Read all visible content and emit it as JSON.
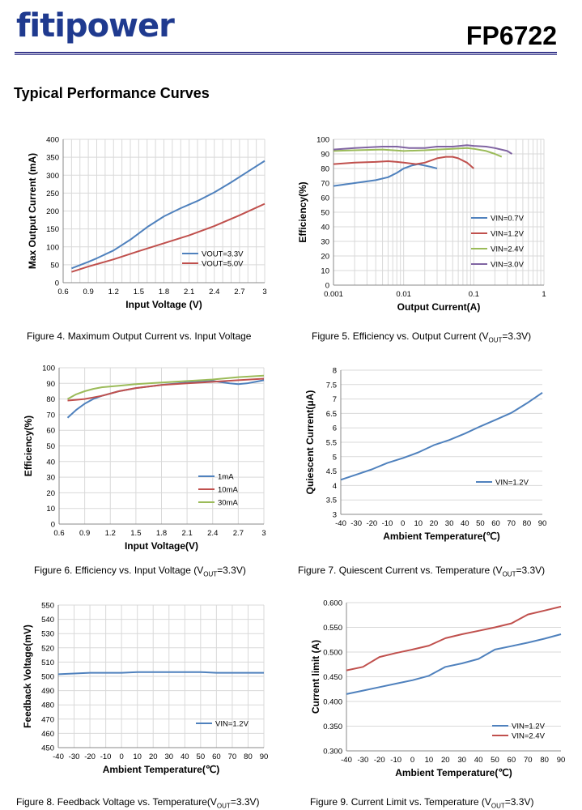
{
  "header": {
    "brand": "fitipower",
    "part_number": "FP6722",
    "section_title": "Typical Performance Curves"
  },
  "captions": [
    {
      "text": "Figure 4. Maximum Output Current vs. Input Voltage",
      "sub": "",
      "after": ""
    },
    {
      "text": "Figure 5. Efficiency vs. Output Current (V",
      "sub": "OUT",
      "after": "=3.3V)"
    },
    {
      "text": "Figure 6. Efficiency vs. Input Voltage (V",
      "sub": "OUT",
      "after": "=3.3V)"
    },
    {
      "text": "Figure 7. Quiescent Current vs. Temperature (V",
      "sub": "OUT",
      "after": "=3.3V)"
    },
    {
      "text": "Figure 8. Feedback Voltage vs. Temperature(V",
      "sub": "OUT",
      "after": "=3.3V)"
    },
    {
      "text": "Figure 9. Current Limit vs. Temperature (V",
      "sub": "OUT",
      "after": "=3.3V)"
    }
  ],
  "colors": {
    "blue": "#4f81bd",
    "red": "#c0504d",
    "green": "#9bbb59",
    "purple": "#8064a2",
    "grid": "#d9d9d9",
    "axis": "#888888"
  },
  "chart_data": [
    {
      "type": "line",
      "xlabel": "Input Voltage (V)",
      "ylabel": "Max Output Current (mA)",
      "xlim": [
        0.6,
        3
      ],
      "ylim": [
        0,
        400
      ],
      "xticks": [
        "0.6",
        "0.9",
        "1.2",
        "1.5",
        "1.8",
        "2.1",
        "2.4",
        "2.7",
        "3"
      ],
      "yticks": [
        "0",
        "50",
        "100",
        "150",
        "200",
        "250",
        "300",
        "350",
        "400"
      ],
      "legend": "bottom-right",
      "series": [
        {
          "name": "VOUT=3.3V",
          "color": "blue",
          "x": [
            0.7,
            0.9,
            1.0,
            1.2,
            1.4,
            1.6,
            1.8,
            2.0,
            2.2,
            2.4,
            2.6,
            2.8,
            3.0
          ],
          "y": [
            40,
            58,
            68,
            90,
            120,
            155,
            185,
            208,
            228,
            252,
            280,
            310,
            340
          ]
        },
        {
          "name": "VOUT=5.0V",
          "color": "red",
          "x": [
            0.7,
            0.9,
            1.2,
            1.5,
            1.8,
            2.1,
            2.4,
            2.7,
            3.0
          ],
          "y": [
            30,
            45,
            65,
            88,
            110,
            132,
            158,
            188,
            220
          ]
        }
      ]
    },
    {
      "type": "line",
      "xlabel": "Output Current(A)",
      "ylabel": "Efficiency(%)",
      "xscale": "log",
      "xlim": [
        0.001,
        1
      ],
      "ylim": [
        0,
        100
      ],
      "xticks": [
        "0.001",
        "0.01",
        "0.1",
        "1"
      ],
      "yticks": [
        "0",
        "10",
        "20",
        "30",
        "40",
        "50",
        "60",
        "70",
        "80",
        "90",
        "100"
      ],
      "legend": "bottom-right",
      "series": [
        {
          "name": "VIN=0.7V",
          "color": "blue",
          "x": [
            0.001,
            0.002,
            0.004,
            0.006,
            0.008,
            0.01,
            0.013,
            0.016,
            0.02,
            0.025,
            0.03
          ],
          "y": [
            68,
            70,
            72,
            74,
            77,
            80,
            82,
            83,
            82,
            81,
            80
          ]
        },
        {
          "name": "VIN=1.2V",
          "color": "red",
          "x": [
            0.001,
            0.002,
            0.004,
            0.006,
            0.008,
            0.01,
            0.015,
            0.02,
            0.03,
            0.04,
            0.05,
            0.06,
            0.08,
            0.1
          ],
          "y": [
            83,
            84,
            84.5,
            85,
            84.5,
            84,
            83,
            84,
            87,
            88,
            88,
            87,
            84,
            80
          ]
        },
        {
          "name": "VIN=2.4V",
          "color": "green",
          "x": [
            0.001,
            0.002,
            0.005,
            0.01,
            0.02,
            0.03,
            0.05,
            0.08,
            0.1,
            0.15,
            0.2,
            0.25
          ],
          "y": [
            92,
            92.5,
            93,
            92,
            92.5,
            93,
            93.5,
            94,
            93.5,
            92,
            90,
            88
          ]
        },
        {
          "name": "VIN=3.0V",
          "color": "purple",
          "x": [
            0.001,
            0.002,
            0.005,
            0.008,
            0.012,
            0.02,
            0.03,
            0.05,
            0.08,
            0.1,
            0.15,
            0.2,
            0.3,
            0.35
          ],
          "y": [
            93,
            94,
            95,
            95,
            94,
            94,
            95,
            95,
            96,
            95.5,
            95,
            94,
            92,
            90
          ]
        }
      ]
    },
    {
      "type": "line",
      "xlabel": "Input Voltage(V)",
      "ylabel": "Efficiency(%)",
      "xlim": [
        0.6,
        3
      ],
      "ylim": [
        0,
        100
      ],
      "xticks": [
        "0.6",
        "0.9",
        "1.2",
        "1.5",
        "1.8",
        "2.1",
        "2.4",
        "2.7",
        "3"
      ],
      "yticks": [
        "0",
        "10",
        "20",
        "30",
        "40",
        "50",
        "60",
        "70",
        "80",
        "90",
        "100"
      ],
      "legend": "bottom-right",
      "series": [
        {
          "name": "1mA",
          "color": "blue",
          "x": [
            0.7,
            0.8,
            0.9,
            1.0,
            1.1,
            1.3,
            1.5,
            1.8,
            2.1,
            2.4,
            2.6,
            2.7,
            2.8,
            2.9,
            3.0
          ],
          "y": [
            68,
            73,
            77,
            80,
            82,
            85,
            87,
            89,
            90.5,
            91.5,
            90,
            89.5,
            90,
            91,
            92
          ]
        },
        {
          "name": "10mA",
          "color": "red",
          "x": [
            0.7,
            0.8,
            0.9,
            1.0,
            1.1,
            1.3,
            1.5,
            1.8,
            2.1,
            2.4,
            2.7,
            3.0
          ],
          "y": [
            79,
            79.5,
            80,
            81,
            82,
            85,
            87,
            89,
            90,
            91,
            92,
            93
          ]
        },
        {
          "name": "30mA",
          "color": "green",
          "x": [
            0.7,
            0.8,
            0.9,
            1.0,
            1.1,
            1.3,
            1.5,
            1.8,
            2.1,
            2.4,
            2.7,
            3.0
          ],
          "y": [
            80,
            83,
            85,
            86.5,
            87.5,
            88.5,
            89.5,
            90.5,
            91.5,
            92.5,
            94,
            95
          ]
        }
      ]
    },
    {
      "type": "line",
      "xlabel": "Ambient Temperature(℃)",
      "ylabel": "Quiescent Current(μA)",
      "xlim": [
        -40,
        90
      ],
      "ylim": [
        3,
        8
      ],
      "xticks": [
        "-40",
        "-30",
        "-20",
        "-10",
        "0",
        "10",
        "20",
        "30",
        "40",
        "50",
        "60",
        "70",
        "80",
        "90"
      ],
      "yticks": [
        "3",
        "3.5",
        "4",
        "4.5",
        "5",
        "5.5",
        "6",
        "6.5",
        "7",
        "7.5",
        "8"
      ],
      "legend": "bottom-right",
      "grid": "horizontal",
      "series": [
        {
          "name": "VIN=1.2V",
          "color": "blue",
          "x": [
            -40,
            -30,
            -20,
            -10,
            0,
            10,
            20,
            30,
            40,
            50,
            60,
            70,
            80,
            90
          ],
          "y": [
            4.2,
            4.38,
            4.56,
            4.78,
            4.95,
            5.15,
            5.4,
            5.58,
            5.8,
            6.05,
            6.28,
            6.52,
            6.85,
            7.22
          ]
        }
      ]
    },
    {
      "type": "line",
      "xlabel": "Ambient Temperature(℃)",
      "ylabel": "Feedback Voltage(mV)",
      "xlim": [
        -40,
        90
      ],
      "ylim": [
        450,
        550
      ],
      "xticks": [
        "-40",
        "-30",
        "-20",
        "-10",
        "0",
        "10",
        "20",
        "30",
        "40",
        "50",
        "60",
        "70",
        "80",
        "90"
      ],
      "yticks": [
        "450",
        "460",
        "470",
        "480",
        "490",
        "500",
        "510",
        "520",
        "530",
        "540",
        "550"
      ],
      "legend": "bottom-right",
      "series": [
        {
          "name": "VIN=1.2V",
          "color": "blue",
          "x": [
            -40,
            -30,
            -20,
            -10,
            0,
            10,
            20,
            30,
            40,
            50,
            60,
            70,
            80,
            90
          ],
          "y": [
            501.5,
            502,
            502.5,
            502.5,
            502.5,
            503,
            503,
            503,
            503,
            503,
            502.5,
            502.5,
            502.5,
            502.5
          ]
        }
      ]
    },
    {
      "type": "line",
      "xlabel": "Ambient Temperature(℃)",
      "ylabel": "Current limit (A)",
      "xlim": [
        -40,
        90
      ],
      "ylim": [
        0.3,
        0.6
      ],
      "xticks": [
        "-40",
        "-30",
        "-20",
        "-10",
        "0",
        "10",
        "20",
        "30",
        "40",
        "50",
        "60",
        "70",
        "80",
        "90"
      ],
      "yticks": [
        "0.300",
        "0.350",
        "0.400",
        "0.450",
        "0.500",
        "0.550",
        "0.600"
      ],
      "legend": "bottom-right",
      "grid": "horizontal",
      "series": [
        {
          "name": "VIN=1.2V",
          "color": "blue",
          "x": [
            -40,
            -30,
            -20,
            -10,
            0,
            10,
            20,
            30,
            40,
            50,
            60,
            70,
            80,
            90
          ],
          "y": [
            0.415,
            0.422,
            0.429,
            0.436,
            0.443,
            0.452,
            0.47,
            0.477,
            0.486,
            0.505,
            0.512,
            0.519,
            0.527,
            0.536
          ]
        },
        {
          "name": "VIN=2.4V",
          "color": "red",
          "x": [
            -40,
            -30,
            -20,
            -10,
            0,
            10,
            20,
            30,
            40,
            50,
            60,
            70,
            80,
            90
          ],
          "y": [
            0.463,
            0.47,
            0.49,
            0.498,
            0.505,
            0.513,
            0.528,
            0.536,
            0.543,
            0.55,
            0.558,
            0.576,
            0.584,
            0.592
          ]
        }
      ]
    }
  ]
}
